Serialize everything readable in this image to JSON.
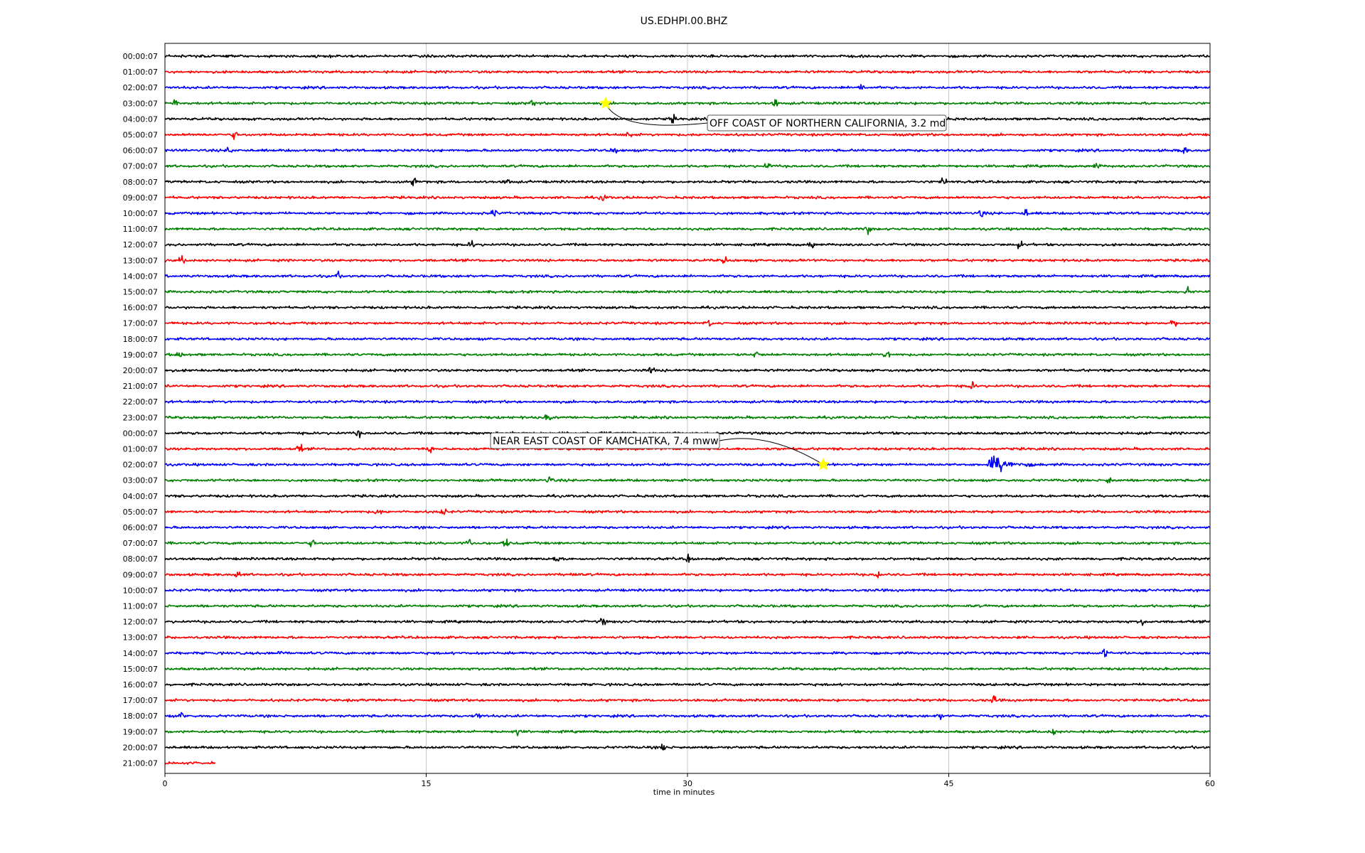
{
  "chart_data": {
    "type": "line",
    "title": "US.EDHPI.00.BHZ",
    "xlabel": "time in minutes",
    "ylabel": "",
    "xlim": [
      0,
      60
    ],
    "xticks": [
      0,
      15,
      30,
      45,
      60
    ],
    "grid": "vertical",
    "trace_colors": [
      "#000000",
      "#ff0000",
      "#0000ff",
      "#008000"
    ],
    "hour_labels": [
      "00:00:07",
      "01:00:07",
      "02:00:07",
      "03:00:07",
      "04:00:07",
      "05:00:07",
      "06:00:07",
      "07:00:07",
      "08:00:07",
      "09:00:07",
      "10:00:07",
      "11:00:07",
      "12:00:07",
      "13:00:07",
      "14:00:07",
      "15:00:07",
      "16:00:07",
      "17:00:07",
      "18:00:07",
      "19:00:07",
      "20:00:07",
      "21:00:07",
      "22:00:07",
      "23:00:07",
      "00:00:07",
      "01:00:07",
      "02:00:07",
      "03:00:07",
      "04:00:07",
      "05:00:07",
      "06:00:07",
      "07:00:07",
      "08:00:07",
      "09:00:07",
      "10:00:07",
      "11:00:07",
      "12:00:07",
      "13:00:07",
      "14:00:07",
      "15:00:07",
      "16:00:07",
      "17:00:07",
      "18:00:07",
      "19:00:07",
      "20:00:07",
      "21:00:07"
    ],
    "last_trace_end_minutes": 2.9,
    "events": [
      {
        "row": 3,
        "time_minutes": 25.3,
        "label": "OFF COAST OF NORTHERN CALIFORNIA, 3.2 md"
      },
      {
        "row": 26,
        "time_minutes": 37.8,
        "label": "NEAR EAST COAST OF KAMCHATKA, 7.4 mww"
      }
    ],
    "wavetrain": {
      "row": 26,
      "start_minutes": 47.2,
      "peak_minutes": 47.6,
      "end_minutes": 51.5
    }
  }
}
